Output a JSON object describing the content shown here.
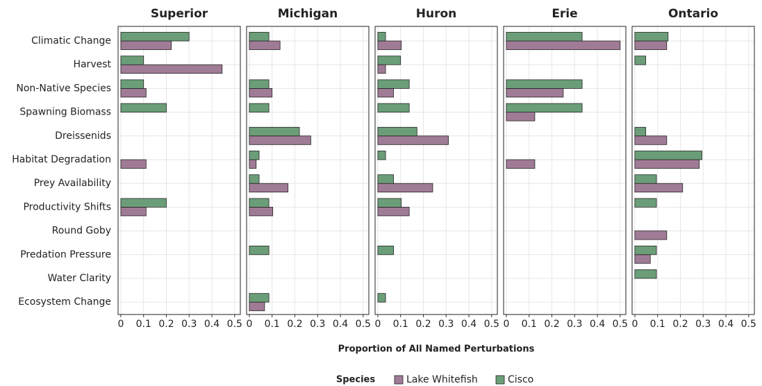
{
  "chart_data": {
    "type": "bar",
    "orientation": "horizontal",
    "xlabel": "Proportion of All Named Perturbations",
    "legend_title": "Species",
    "grid": true,
    "xlim": [
      -0.012,
      0.525
    ],
    "xticks": [
      0,
      0.1,
      0.2,
      0.3,
      0.4,
      0.5
    ],
    "categories": [
      "Climatic Change",
      "Harvest",
      "Non-Native Species",
      "Spawning Biomass",
      "Dreissenids",
      "Habitat Degradation",
      "Prey Availability",
      "Productivity Shifts",
      "Round Goby",
      "Predation Pressure",
      "Water Clarity",
      "Ecosystem Change"
    ],
    "series": [
      {
        "name": "Lake Whitefish",
        "color": "#a07b96"
      },
      {
        "name": "Cisco",
        "color": "#6b9e78"
      }
    ],
    "facets": [
      {
        "title": "Superior",
        "series": [
          {
            "values": [
              0.222,
              0.445,
              0.111,
              null,
              null,
              0.111,
              null,
              0.111,
              null,
              null,
              null,
              null
            ]
          },
          {
            "values": [
              0.3,
              0.1,
              0.1,
              0.2,
              null,
              null,
              null,
              0.2,
              null,
              null,
              null,
              null
            ]
          }
        ]
      },
      {
        "title": "Michigan",
        "series": [
          {
            "values": [
              0.135,
              null,
              0.1,
              null,
              0.27,
              0.03,
              0.17,
              0.103,
              null,
              null,
              null,
              0.067
            ]
          },
          {
            "values": [
              0.086,
              null,
              0.086,
              0.086,
              0.22,
              0.043,
              0.043,
              0.086,
              null,
              0.086,
              null,
              0.086
            ]
          }
        ]
      },
      {
        "title": "Huron",
        "series": [
          {
            "values": [
              0.103,
              0.034,
              0.069,
              null,
              0.31,
              null,
              0.241,
              0.138,
              null,
              null,
              null,
              null
            ]
          },
          {
            "values": [
              0.034,
              0.1,
              0.138,
              0.138,
              0.172,
              0.034,
              0.069,
              0.103,
              null,
              0.069,
              null,
              0.034
            ]
          }
        ]
      },
      {
        "title": "Erie",
        "series": [
          {
            "values": [
              0.5,
              null,
              0.25,
              0.125,
              null,
              0.125,
              null,
              null,
              null,
              null,
              null,
              null
            ]
          },
          {
            "values": [
              0.333,
              null,
              0.333,
              0.333,
              null,
              null,
              null,
              null,
              null,
              null,
              null,
              null
            ]
          }
        ]
      },
      {
        "title": "Ontario",
        "series": [
          {
            "values": [
              0.14,
              null,
              null,
              null,
              0.14,
              0.283,
              0.21,
              null,
              0.14,
              0.068,
              null,
              null
            ]
          },
          {
            "values": [
              0.146,
              0.048,
              null,
              null,
              0.048,
              0.295,
              0.095,
              0.095,
              null,
              0.095,
              0.095,
              null
            ]
          }
        ]
      }
    ]
  }
}
